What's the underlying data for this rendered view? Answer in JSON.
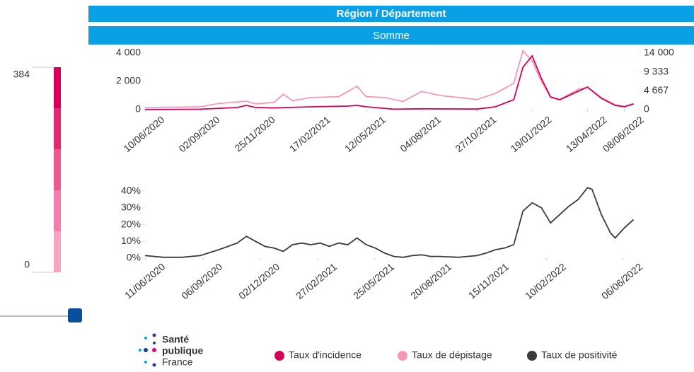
{
  "header": {
    "title": "Région / Département",
    "subtitle": "Somme"
  },
  "color_scale": {
    "max": 384,
    "min": 0,
    "colors": [
      "#d6005a",
      "#df2a72",
      "#e85a90",
      "#f07fab",
      "#f7a3c4"
    ]
  },
  "logo": {
    "lines": [
      "Santé",
      "publique",
      "France"
    ]
  },
  "chart_data": [
    {
      "type": "line",
      "xlim": [
        "10/06/2020",
        "30/06/2022"
      ],
      "xticks": [
        "10/06/2020",
        "02/09/2020",
        "25/11/2020",
        "17/02/2021",
        "12/05/2021",
        "04/08/2021",
        "27/10/2021",
        "19/01/2022",
        "13/04/2022",
        "08/06/2022"
      ],
      "ylim": [
        0,
        4250
      ],
      "yticks": [
        0,
        {
          "value": 2000,
          "label": "2 000"
        },
        {
          "value": 4000,
          "label": "4 000"
        }
      ],
      "y2lim": [
        0,
        14875
      ],
      "y2ticks": [
        0,
        {
          "value": 4667,
          "label": "4 667"
        },
        {
          "value": 9333,
          "label": "9 333"
        },
        {
          "value": 14000,
          "label": "14 000"
        }
      ],
      "series": [
        {
          "name": "Taux de dépistage",
          "color": "#f598b8",
          "axis": "y2",
          "x": [
            "10/06/2020",
            "02/09/2020",
            "30/09/2020",
            "11/11/2020",
            "25/11/2020",
            "23/12/2020",
            "06/01/2021",
            "20/01/2021",
            "17/02/2021",
            "31/03/2021",
            "28/04/2021",
            "12/05/2021",
            "09/06/2021",
            "07/07/2021",
            "04/08/2021",
            "01/09/2021",
            "27/10/2021",
            "24/11/2021",
            "22/12/2021",
            "05/01/2022",
            "19/01/2022",
            "02/02/2022",
            "16/02/2022",
            "02/03/2022",
            "30/03/2022",
            "13/04/2022",
            "04/05/2022",
            "25/05/2022",
            "08/06/2022",
            "22/06/2022"
          ],
          "values": [
            500,
            700,
            1500,
            2100,
            1400,
            1800,
            3800,
            2200,
            3000,
            3200,
            5800,
            3200,
            3000,
            2000,
            4500,
            3500,
            2500,
            4000,
            6500,
            14600,
            12000,
            7000,
            3000,
            2500,
            5000,
            5500,
            3000,
            1200,
            800,
            1500
          ]
        },
        {
          "name": "Taux d'incidence",
          "color": "#d6005a",
          "x": [
            "10/06/2020",
            "02/09/2020",
            "28/10/2020",
            "11/11/2020",
            "25/11/2020",
            "23/12/2020",
            "17/02/2021",
            "14/04/2021",
            "28/04/2021",
            "12/05/2021",
            "23/06/2021",
            "04/08/2021",
            "27/10/2021",
            "24/11/2021",
            "22/12/2021",
            "05/01/2022",
            "19/01/2022",
            "02/02/2022",
            "16/02/2022",
            "02/03/2022",
            "30/03/2022",
            "13/04/2022",
            "04/05/2022",
            "25/05/2022",
            "08/06/2022",
            "22/06/2022"
          ],
          "values": [
            0,
            30,
            150,
            300,
            150,
            120,
            200,
            250,
            300,
            200,
            30,
            60,
            40,
            200,
            700,
            3000,
            3800,
            2200,
            900,
            700,
            1300,
            1600,
            800,
            300,
            200,
            400
          ]
        }
      ]
    },
    {
      "type": "line",
      "xlim": [
        "10/06/2020",
        "30/06/2022"
      ],
      "xticks": [
        "11/06/2020",
        "06/09/2020",
        "02/12/2020",
        "27/02/2021",
        "25/05/2021",
        "20/08/2021",
        "15/11/2021",
        "10/02/2022",
        "06/06/2022"
      ],
      "ylim": [
        0,
        43
      ],
      "yticks": [
        {
          "value": 0,
          "label": "0%"
        },
        {
          "value": 10,
          "label": "10%"
        },
        {
          "value": 20,
          "label": "20%"
        },
        {
          "value": 30,
          "label": "30%"
        },
        {
          "value": 40,
          "label": "40%"
        }
      ],
      "series": [
        {
          "name": "Taux de positivité",
          "color": "#3a3a3a",
          "x": [
            "10/06/2020",
            "08/07/2020",
            "05/08/2020",
            "02/09/2020",
            "30/09/2020",
            "28/10/2020",
            "11/11/2020",
            "25/11/2020",
            "09/12/2020",
            "23/12/2020",
            "06/01/2021",
            "20/01/2021",
            "03/02/2021",
            "17/02/2021",
            "03/03/2021",
            "17/03/2021",
            "31/03/2021",
            "14/04/2021",
            "28/04/2021",
            "12/05/2021",
            "26/05/2021",
            "09/06/2021",
            "23/06/2021",
            "07/07/2021",
            "21/07/2021",
            "04/08/2021",
            "18/08/2021",
            "01/09/2021",
            "29/09/2021",
            "27/10/2021",
            "10/11/2021",
            "24/11/2021",
            "08/12/2021",
            "22/12/2021",
            "05/01/2022",
            "19/01/2022",
            "02/02/2022",
            "16/02/2022",
            "02/03/2022",
            "16/03/2022",
            "30/03/2022",
            "13/04/2022",
            "20/04/2022",
            "04/05/2022",
            "18/05/2022",
            "25/05/2022",
            "08/06/2022",
            "22/06/2022"
          ],
          "values": [
            1.5,
            0.5,
            0.5,
            1.5,
            5,
            9,
            13,
            10,
            7,
            6,
            4,
            8,
            9,
            8,
            9,
            7,
            9,
            8,
            12,
            8,
            6,
            3,
            1,
            0.5,
            1.5,
            2,
            1,
            1,
            0.5,
            1.5,
            3,
            5,
            6,
            8,
            28,
            33,
            30,
            21,
            26,
            31,
            35,
            42,
            41,
            26,
            15,
            12,
            18,
            23
          ]
        }
      ]
    }
  ]
}
